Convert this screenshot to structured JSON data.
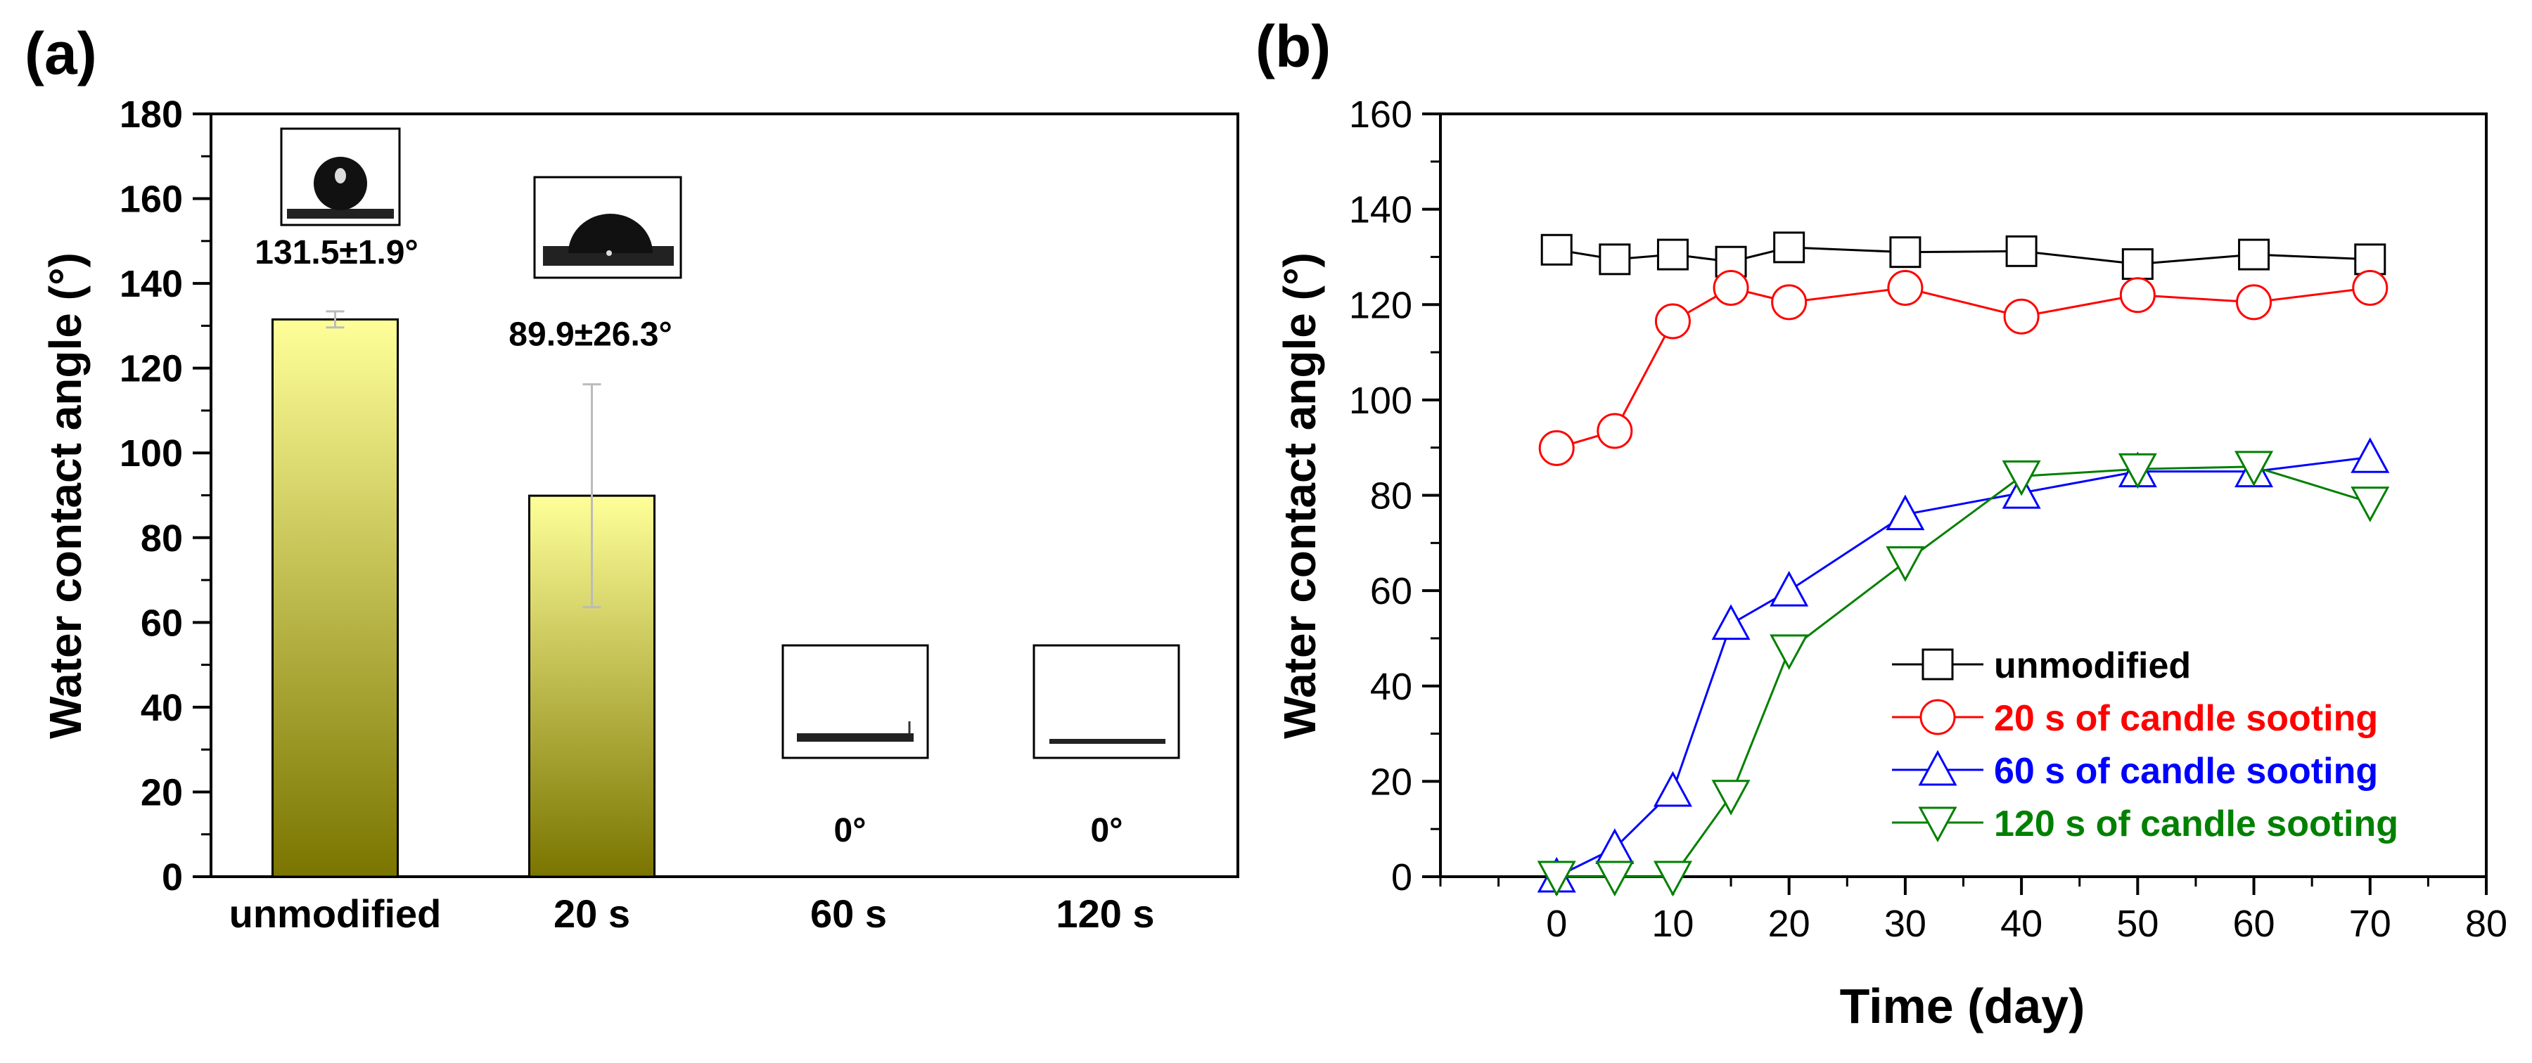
{
  "chart_data": [
    {
      "panel_label": "(a)",
      "type": "bar",
      "title": "",
      "xlabel": "",
      "ylabel": "Water contact angle (°)",
      "ylim": [
        0,
        180
      ],
      "yticks": [
        0,
        20,
        40,
        60,
        80,
        100,
        120,
        140,
        160,
        180
      ],
      "categories": [
        "unmodified",
        "20 s",
        "60 s",
        "120 s"
      ],
      "values": [
        131.5,
        89.9,
        0,
        0
      ],
      "errors": [
        1.9,
        26.3,
        0,
        0
      ],
      "value_labels": [
        "131.5±1.9°",
        "89.9±26.3°",
        "0°",
        "0°"
      ],
      "bar_fill": {
        "top": "#ffff99",
        "bottom": "#7a7500"
      },
      "insets": [
        "droplet-high-contact-angle",
        "droplet-medium-contact-angle",
        "flat-wetted-surface",
        "flat-wetted-surface"
      ]
    },
    {
      "panel_label": "(b)",
      "type": "line",
      "title": "",
      "xlabel": "Time (day)",
      "ylabel": "Water contact angle (°)",
      "xlim": [
        -10,
        80
      ],
      "ylim": [
        0,
        160
      ],
      "xticks": [
        0,
        10,
        20,
        30,
        40,
        50,
        60,
        70,
        80
      ],
      "yticks": [
        0,
        20,
        40,
        60,
        80,
        100,
        120,
        140,
        160
      ],
      "legend_position": "bottom-right",
      "series": [
        {
          "name": "unmodified",
          "color": "#000000",
          "marker": "square",
          "x": [
            0,
            5,
            10,
            15,
            20,
            30,
            40,
            50,
            60,
            70
          ],
          "y": [
            131.5,
            129.5,
            130.5,
            129,
            132,
            131,
            131.2,
            128.5,
            130.5,
            129.5
          ]
        },
        {
          "name": "20 s of candle sooting",
          "color": "#ff0000",
          "marker": "circle",
          "x": [
            0,
            5,
            10,
            15,
            20,
            30,
            40,
            50,
            60,
            70
          ],
          "y": [
            89.9,
            93.5,
            116.5,
            123.5,
            120.5,
            123.5,
            117.5,
            122,
            120.5,
            123.5
          ]
        },
        {
          "name": "60 s of candle sooting",
          "color": "#0000ff",
          "marker": "triangle-up",
          "x": [
            0,
            5,
            10,
            15,
            20,
            30,
            40,
            50,
            60,
            70
          ],
          "y": [
            0,
            6,
            18,
            53,
            60,
            76,
            80.5,
            85,
            85,
            88
          ]
        },
        {
          "name": "120 s of candle sooting",
          "color": "#008000",
          "marker": "triangle-down",
          "x": [
            0,
            5,
            10,
            15,
            20,
            30,
            40,
            50,
            60,
            70
          ],
          "y": [
            0,
            0,
            0,
            17,
            47.5,
            66,
            84,
            85.5,
            86,
            78.5
          ]
        }
      ]
    }
  ]
}
